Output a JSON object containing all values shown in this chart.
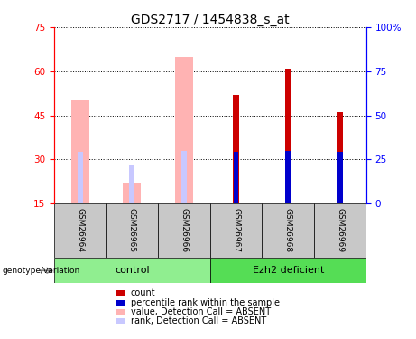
{
  "title": "GDS2717 / 1454838_s_at",
  "samples": [
    "GSM26964",
    "GSM26965",
    "GSM26966",
    "GSM26967",
    "GSM26968",
    "GSM26969"
  ],
  "ylim_left": [
    15,
    75
  ],
  "ylim_right": [
    0,
    100
  ],
  "yticks_left": [
    15,
    30,
    45,
    60,
    75
  ],
  "yticks_right": [
    0,
    25,
    50,
    75,
    100
  ],
  "pink_bar_values": [
    50,
    22,
    65,
    null,
    null,
    null
  ],
  "pink_rank_values": [
    29,
    22,
    30,
    null,
    null,
    null
  ],
  "dark_red_bar_values": [
    null,
    null,
    null,
    52,
    61,
    46
  ],
  "blue_rank_values": [
    null,
    null,
    null,
    29,
    30,
    29
  ],
  "absent_bar_color": "#FFB3B3",
  "absent_rank_color": "#C8C8FF",
  "count_color": "#CC0000",
  "rank_color": "#0000CC",
  "control_bg": "#90EE90",
  "ezh2_bg": "#55DD55",
  "sample_bg": "#C8C8C8",
  "title_fontsize": 10,
  "tick_fontsize": 7.5,
  "legend_fontsize": 7
}
